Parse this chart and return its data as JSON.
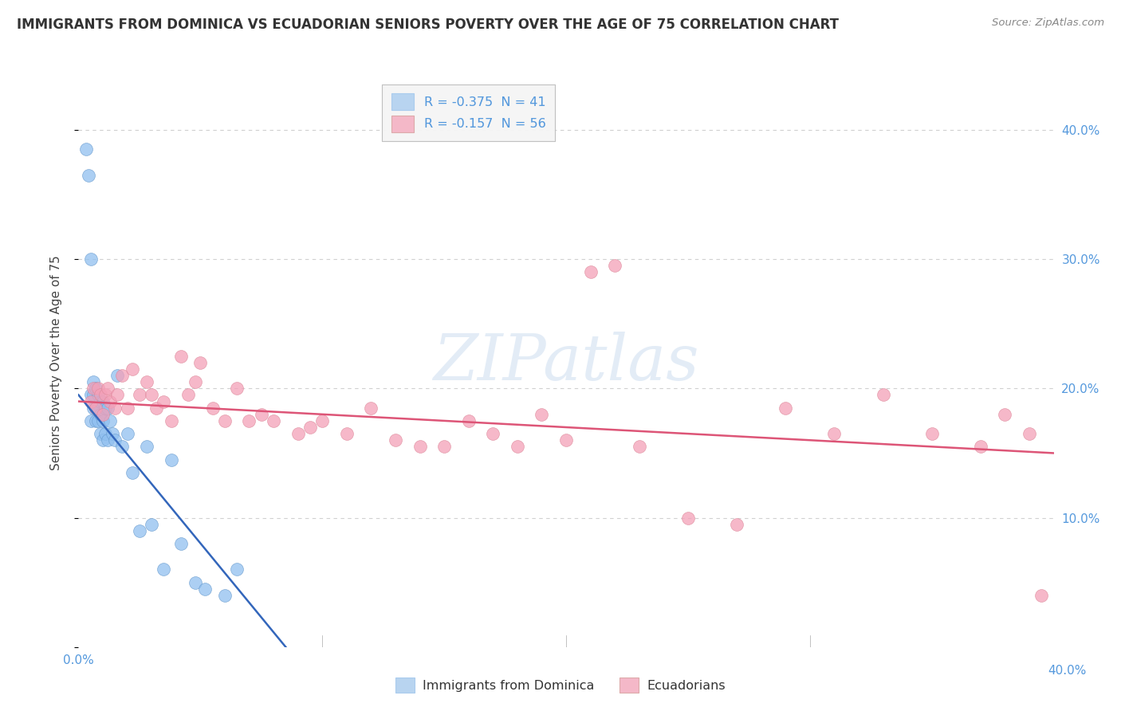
{
  "title": "IMMIGRANTS FROM DOMINICA VS ECUADORIAN SENIORS POVERTY OVER THE AGE OF 75 CORRELATION CHART",
  "source": "Source: ZipAtlas.com",
  "ylabel": "Seniors Poverty Over the Age of 75",
  "xlim": [
    0.0,
    0.4
  ],
  "ylim": [
    0.0,
    0.44
  ],
  "legend_entries": [
    {
      "label": "R = -0.375  N = 41",
      "color": "#b8d4f0"
    },
    {
      "label": "R = -0.157  N = 56",
      "color": "#f4b8c8"
    }
  ],
  "legend_bottom": [
    "Immigrants from Dominica",
    "Ecuadorians"
  ],
  "blue_scatter_x": [
    0.003,
    0.004,
    0.005,
    0.005,
    0.005,
    0.006,
    0.006,
    0.006,
    0.007,
    0.007,
    0.007,
    0.008,
    0.008,
    0.008,
    0.009,
    0.009,
    0.009,
    0.01,
    0.01,
    0.01,
    0.011,
    0.011,
    0.012,
    0.012,
    0.013,
    0.014,
    0.015,
    0.016,
    0.018,
    0.02,
    0.022,
    0.025,
    0.028,
    0.03,
    0.035,
    0.038,
    0.042,
    0.048,
    0.052,
    0.06,
    0.065
  ],
  "blue_scatter_y": [
    0.385,
    0.365,
    0.3,
    0.195,
    0.175,
    0.205,
    0.195,
    0.185,
    0.2,
    0.185,
    0.175,
    0.195,
    0.185,
    0.175,
    0.19,
    0.18,
    0.165,
    0.19,
    0.175,
    0.16,
    0.185,
    0.165,
    0.185,
    0.16,
    0.175,
    0.165,
    0.16,
    0.21,
    0.155,
    0.165,
    0.135,
    0.09,
    0.155,
    0.095,
    0.06,
    0.145,
    0.08,
    0.05,
    0.045,
    0.04,
    0.06
  ],
  "pink_scatter_x": [
    0.005,
    0.006,
    0.007,
    0.008,
    0.009,
    0.01,
    0.011,
    0.012,
    0.013,
    0.015,
    0.016,
    0.018,
    0.02,
    0.022,
    0.025,
    0.028,
    0.03,
    0.032,
    0.035,
    0.038,
    0.042,
    0.045,
    0.048,
    0.05,
    0.055,
    0.06,
    0.065,
    0.07,
    0.075,
    0.08,
    0.09,
    0.095,
    0.1,
    0.11,
    0.12,
    0.13,
    0.14,
    0.15,
    0.16,
    0.17,
    0.18,
    0.19,
    0.2,
    0.21,
    0.22,
    0.23,
    0.25,
    0.27,
    0.29,
    0.31,
    0.33,
    0.35,
    0.37,
    0.38,
    0.39,
    0.395
  ],
  "pink_scatter_y": [
    0.19,
    0.2,
    0.185,
    0.2,
    0.195,
    0.18,
    0.195,
    0.2,
    0.19,
    0.185,
    0.195,
    0.21,
    0.185,
    0.215,
    0.195,
    0.205,
    0.195,
    0.185,
    0.19,
    0.175,
    0.225,
    0.195,
    0.205,
    0.22,
    0.185,
    0.175,
    0.2,
    0.175,
    0.18,
    0.175,
    0.165,
    0.17,
    0.175,
    0.165,
    0.185,
    0.16,
    0.155,
    0.155,
    0.175,
    0.165,
    0.155,
    0.18,
    0.16,
    0.29,
    0.295,
    0.155,
    0.1,
    0.095,
    0.185,
    0.165,
    0.195,
    0.165,
    0.155,
    0.18,
    0.165,
    0.04
  ],
  "blue_line_x": [
    0.0,
    0.085
  ],
  "blue_line_y": [
    0.195,
    0.0
  ],
  "pink_line_x": [
    0.0,
    0.4
  ],
  "pink_line_y": [
    0.19,
    0.15
  ],
  "scatter_color_blue": "#90c0f0",
  "scatter_color_pink": "#f4a0b8",
  "line_color_blue": "#3366bb",
  "line_color_pink": "#dd5577",
  "watermark_text": "ZIPatlas",
  "background_color": "#ffffff",
  "grid_color": "#d0d0d0"
}
